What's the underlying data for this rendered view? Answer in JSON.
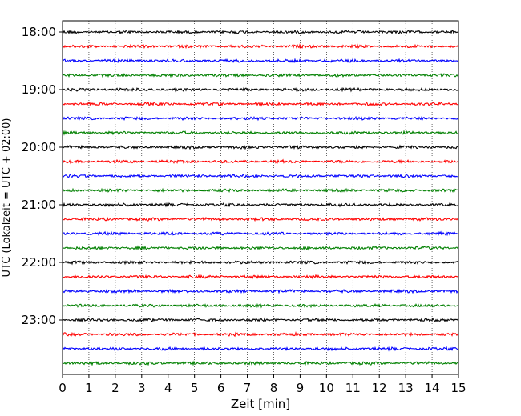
{
  "chart_data": {
    "type": "line",
    "title": "",
    "xlabel": "Zeit  [min]",
    "ylabel": "UTC (Lokalzeit = UTC + 02:00)",
    "xlim": [
      0,
      15
    ],
    "x_ticks": [
      0,
      1,
      2,
      3,
      4,
      5,
      6,
      7,
      8,
      9,
      10,
      11,
      12,
      13,
      14,
      15
    ],
    "grid": "vertical dotted",
    "y_tick_labels": [
      "18:00",
      "19:00",
      "20:00",
      "21:00",
      "22:00",
      "23:00"
    ],
    "trace_colors": [
      "#000000",
      "#ff0000",
      "#0000ff",
      "#008000"
    ],
    "traces": [
      {
        "start": "18:00",
        "color": "#000000"
      },
      {
        "start": "18:15",
        "color": "#ff0000"
      },
      {
        "start": "18:30",
        "color": "#0000ff"
      },
      {
        "start": "18:45",
        "color": "#008000"
      },
      {
        "start": "19:00",
        "color": "#000000"
      },
      {
        "start": "19:15",
        "color": "#ff0000"
      },
      {
        "start": "19:30",
        "color": "#0000ff"
      },
      {
        "start": "19:45",
        "color": "#008000"
      },
      {
        "start": "20:00",
        "color": "#000000"
      },
      {
        "start": "20:15",
        "color": "#ff0000"
      },
      {
        "start": "20:30",
        "color": "#0000ff"
      },
      {
        "start": "20:45",
        "color": "#008000"
      },
      {
        "start": "21:00",
        "color": "#000000"
      },
      {
        "start": "21:15",
        "color": "#ff0000"
      },
      {
        "start": "21:30",
        "color": "#0000ff"
      },
      {
        "start": "21:45",
        "color": "#008000"
      },
      {
        "start": "22:00",
        "color": "#000000"
      },
      {
        "start": "22:15",
        "color": "#ff0000"
      },
      {
        "start": "22:30",
        "color": "#0000ff"
      },
      {
        "start": "22:45",
        "color": "#008000"
      },
      {
        "start": "23:00",
        "color": "#000000"
      },
      {
        "start": "23:15",
        "color": "#ff0000"
      },
      {
        "start": "23:30",
        "color": "#0000ff"
      },
      {
        "start": "23:45",
        "color": "#008000"
      }
    ]
  }
}
